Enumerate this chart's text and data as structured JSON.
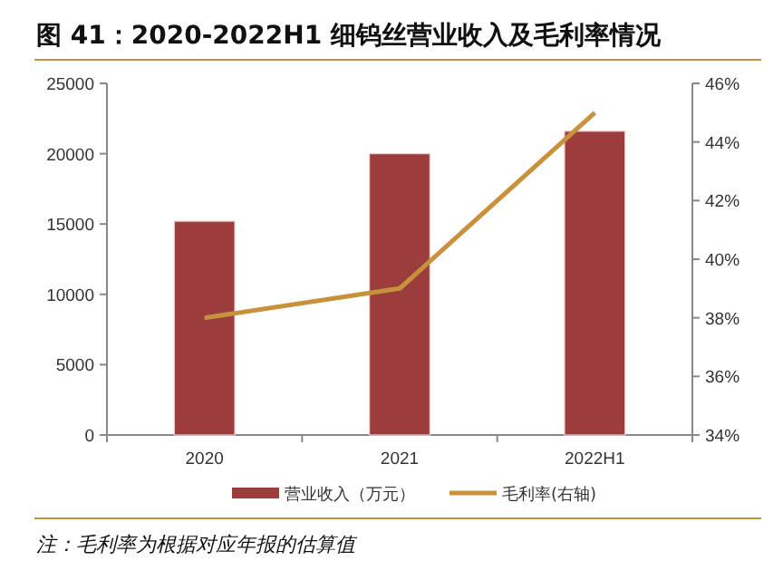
{
  "chart_data": {
    "type": "bar",
    "title": "图 41：2020-2022H1 细钨丝营业收入及毛利率情况",
    "categories": [
      "2020",
      "2021",
      "2022H1"
    ],
    "series": [
      {
        "name": "营业收入（万元）",
        "color": "#9b3d3d",
        "values": [
          15200,
          20000,
          21600
        ]
      },
      {
        "name": "毛利率(右轴)",
        "type": "line",
        "axis": "y2",
        "color": "#c8913c",
        "values": [
          38,
          39,
          45
        ]
      }
    ],
    "ylim": [
      0,
      25000
    ],
    "yticks": [
      0,
      5000,
      10000,
      15000,
      20000,
      25000
    ],
    "y2lim": [
      34,
      46
    ],
    "y2ticks": [
      {
        "value": 34,
        "label": "34%"
      },
      {
        "value": 36,
        "label": "36%"
      },
      {
        "value": 38,
        "label": "38%"
      },
      {
        "value": 40,
        "label": "40%"
      },
      {
        "value": 42,
        "label": "42%"
      },
      {
        "value": 44,
        "label": "44%"
      },
      {
        "value": 46,
        "label": "46%"
      }
    ],
    "legend": "bottom",
    "annotations": [
      "注：毛利率为根据对应年报的估算值"
    ]
  }
}
